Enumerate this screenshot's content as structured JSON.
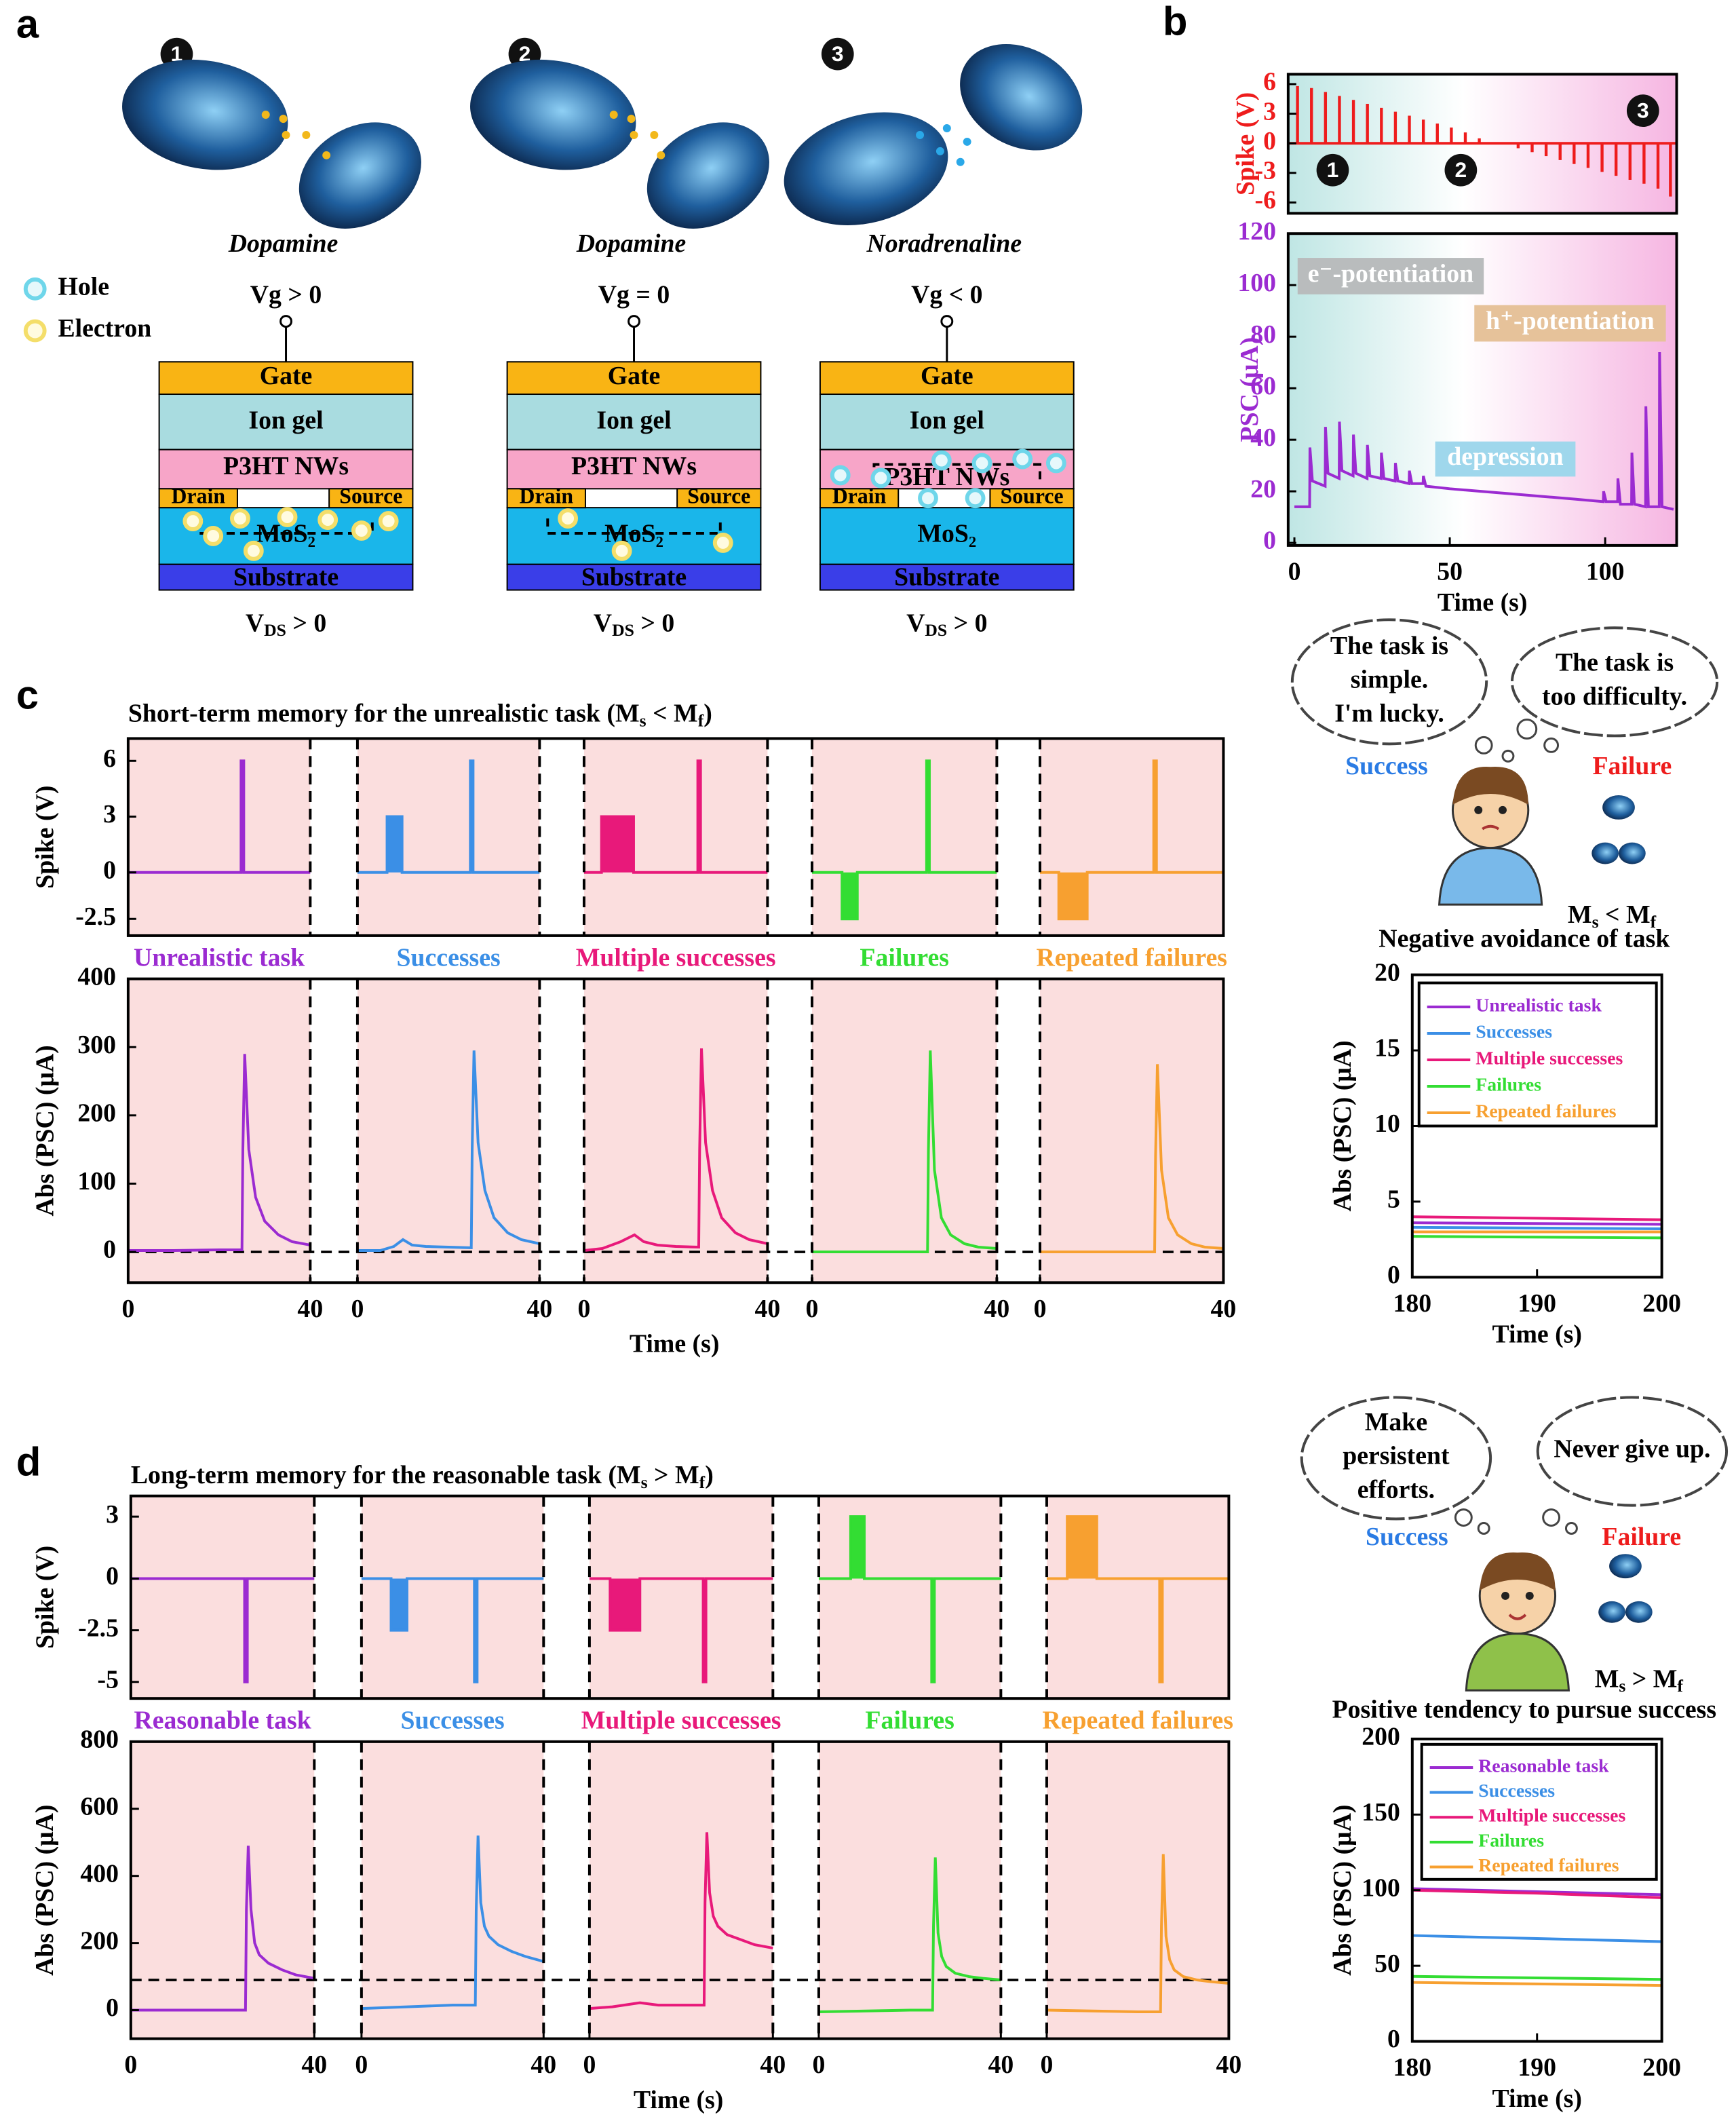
{
  "panel_labels": [
    "a",
    "b",
    "c",
    "d"
  ],
  "panel_a": {
    "columns": [
      {
        "number": "1",
        "transmitter": "Dopamine",
        "gate_voltage": "Vg > 0"
      },
      {
        "number": "2",
        "transmitter": "Dopamine",
        "gate_voltage": "Vg = 0"
      },
      {
        "number": "3",
        "transmitter": "Noradrenaline",
        "gate_voltage": "Vg < 0"
      }
    ],
    "legend": [
      "Hole",
      "Electron"
    ],
    "layers": {
      "gate": "Gate",
      "ion_gel": "Ion gel",
      "channel": "P3HT NWs",
      "drain": "Drain",
      "source": "Source",
      "mos2": "MoS₂",
      "substrate": "Substrate"
    },
    "vds": [
      "V",
      "DS",
      " > 0"
    ]
  },
  "panel_c": {
    "title": [
      "Short-term memory for the unrealistic task (M",
      "s",
      " < M",
      "f",
      ")"
    ],
    "thoughts": [
      [
        "The task is",
        "simple.",
        "I'm lucky."
      ],
      [
        "The  task  is",
        "too difficulty."
      ]
    ],
    "success": "Success",
    "failure": "Failure",
    "relation": [
      "M",
      "s",
      " < M",
      "f"
    ],
    "caption": "Negative avoidance of task"
  },
  "panel_d": {
    "title": [
      "Long-term memory for the reasonable task (M",
      "s",
      " > M",
      "f",
      ")"
    ],
    "thoughts": [
      [
        "Make",
        "persistent",
        "efforts."
      ],
      [
        "Never give up."
      ]
    ],
    "success": "Success",
    "failure": "Failure",
    "relation": [
      "M",
      "s",
      " > M",
      "f"
    ],
    "caption": "Positive tendency to pursue success"
  },
  "chart_data": [
    {
      "type": "stem",
      "ylabel": "Spike (V)",
      "color": "#ee1c1c",
      "x": [
        1,
        5.5,
        10,
        14.5,
        19,
        23.5,
        28,
        32.5,
        37,
        41.5,
        46,
        50.5,
        55,
        59.5,
        72,
        76.5,
        81,
        85.5,
        90,
        94.5,
        99,
        103.5,
        108,
        112.5,
        117,
        121
      ],
      "values": [
        5.8,
        5.6,
        5.2,
        4.8,
        4.4,
        4,
        3.6,
        3.2,
        2.8,
        2.4,
        2,
        1.6,
        1.1,
        0.5,
        -0.5,
        -0.9,
        -1.3,
        -1.7,
        -2.1,
        -2.5,
        -2.9,
        -3.3,
        -3.7,
        -4.1,
        -4.6,
        -5.4
      ],
      "xlim": [
        -2,
        123
      ],
      "ylim": [
        -7.1,
        7
      ],
      "yticks": [
        6,
        3,
        0,
        -3,
        -6
      ],
      "annotations": [
        "1",
        "2",
        "3"
      ]
    },
    {
      "type": "line",
      "xlabel": "Time (s)",
      "ylabel": "PSC (μA)",
      "color": "#9b2bd1",
      "x": [
        0,
        4.9,
        5,
        5.8,
        9.9,
        10,
        10.8,
        14.4,
        14.5,
        15.3,
        18.9,
        19,
        19.8,
        23.4,
        23.5,
        24.3,
        27.9,
        28,
        28.8,
        32.4,
        32.5,
        33.3,
        36.9,
        37,
        37.8,
        41.4,
        41.5,
        42.3,
        50,
        60,
        70,
        80,
        90,
        99.4,
        99.5,
        100.3,
        104,
        104.1,
        104.9,
        108.5,
        108.6,
        109.4,
        113,
        113.1,
        113.9,
        117.4,
        117.5,
        118.3,
        122
      ],
      "values": [
        14,
        14,
        37,
        24,
        22,
        45,
        27,
        25,
        47,
        28,
        26,
        42,
        27,
        25,
        38,
        26,
        25,
        35,
        25,
        24,
        31,
        24,
        23,
        28,
        23,
        23,
        26,
        22,
        21,
        20,
        19,
        18,
        17,
        16,
        20,
        16,
        16,
        25,
        15,
        15,
        35,
        15,
        14,
        53,
        14,
        14,
        74,
        14,
        13
      ],
      "xlim": [
        -2,
        123
      ],
      "ylim": [
        -1,
        120
      ],
      "xticks": [
        0,
        50,
        100
      ],
      "yticks": [
        0,
        20,
        40,
        60,
        80,
        100,
        120
      ],
      "annotations": [
        "e⁻-potentiation",
        "h⁺-potentiation",
        "depression"
      ]
    },
    {
      "type": "segments",
      "ylabel": "Spike (V)",
      "xlim": [
        0,
        40
      ],
      "ylim": [
        -3.4,
        7.2
      ],
      "yticks": [
        6,
        3,
        0,
        -2.5
      ],
      "series": [
        {
          "color": "#9b2bd1",
          "x": [
            0,
            24.8,
            24.8,
            25.4,
            25.4,
            40
          ],
          "values": [
            0,
            0,
            6,
            6,
            0,
            0
          ]
        },
        {
          "color": "#3b8fe6",
          "x": [
            0,
            6.5,
            6.5,
            9.8,
            9.8,
            24.8,
            24.8,
            25.4,
            25.4,
            40
          ],
          "values": [
            0,
            0,
            3,
            3,
            0,
            0,
            6,
            6,
            0,
            0
          ]
        },
        {
          "color": "#e8197a",
          "x": [
            0,
            3.8,
            3.8,
            10.8,
            10.8,
            24.8,
            24.8,
            25.4,
            25.4,
            40
          ],
          "values": [
            0,
            0,
            3,
            3,
            0,
            0,
            6,
            6,
            0,
            0
          ]
        },
        {
          "color": "#33dd33",
          "x": [
            0,
            6.5,
            6.5,
            9.8,
            9.8,
            24.8,
            24.8,
            25.4,
            25.4,
            40
          ],
          "values": [
            0,
            0,
            -2.5,
            -2.5,
            0,
            0,
            6,
            6,
            0,
            0
          ]
        },
        {
          "color": "#f7a030",
          "x": [
            0,
            4.1,
            4.1,
            10.3,
            10.3,
            24.8,
            24.8,
            25.4,
            25.4,
            40
          ],
          "values": [
            0,
            0,
            -2.5,
            -2.5,
            0,
            0,
            6,
            6,
            0,
            0
          ]
        }
      ]
    },
    {
      "type": "segments",
      "xlabel": "Time (s)",
      "ylabel": "Abs (PSC) (μA)",
      "xlim": [
        0,
        40
      ],
      "xticks": [
        0,
        40
      ],
      "ylim": [
        -45,
        400
      ],
      "yticks": [
        0,
        100,
        200,
        300,
        400
      ],
      "hline": 0,
      "series": [
        {
          "name": "Unrealistic task",
          "color": "#9b2bd1",
          "x": [
            0,
            10,
            20,
            25,
            25.2,
            25.6,
            26.5,
            28,
            30,
            33,
            36,
            40
          ],
          "values": [
            2,
            2,
            3,
            3,
            150,
            290,
            150,
            80,
            45,
            25,
            15,
            10
          ]
        },
        {
          "name": "Successes",
          "color": "#3b8fe6",
          "x": [
            0,
            5,
            8,
            10,
            12,
            15,
            20,
            25,
            25.2,
            25.6,
            26.5,
            28,
            30,
            33,
            36,
            40
          ],
          "values": [
            2,
            2,
            8,
            18,
            10,
            8,
            7,
            6,
            150,
            295,
            160,
            90,
            50,
            28,
            18,
            12
          ]
        },
        {
          "name": "Multiple successes",
          "color": "#e8197a",
          "x": [
            0,
            4,
            8,
            11,
            13,
            16,
            20,
            25,
            25.2,
            25.6,
            26.5,
            28,
            30,
            33,
            36,
            40
          ],
          "values": [
            2,
            5,
            15,
            25,
            15,
            10,
            8,
            7,
            150,
            298,
            160,
            90,
            50,
            28,
            18,
            12
          ]
        },
        {
          "name": "Failures",
          "color": "#33dd33",
          "x": [
            0,
            20,
            25,
            25.2,
            25.6,
            26.5,
            28,
            30,
            33,
            36,
            40
          ],
          "values": [
            0,
            0,
            0,
            150,
            295,
            120,
            50,
            25,
            12,
            7,
            5
          ]
        },
        {
          "name": "Repeated failures",
          "color": "#f7a030",
          "x": [
            0,
            20,
            25,
            25.2,
            25.6,
            26.5,
            28,
            30,
            33,
            36,
            40
          ],
          "values": [
            0,
            0,
            0,
            140,
            275,
            120,
            50,
            25,
            12,
            7,
            5
          ]
        }
      ]
    },
    {
      "type": "line",
      "xlabel": "Time (s)",
      "ylabel": "Abs (PSC) (μA)",
      "xlim": [
        180,
        200
      ],
      "xticks": [
        180,
        190,
        200
      ],
      "ylim": [
        0,
        20
      ],
      "yticks": [
        0,
        5,
        10,
        15,
        20
      ],
      "legend": "upper left",
      "x": [
        180,
        190,
        200
      ],
      "series": [
        {
          "name": "Unrealistic task",
          "color": "#9b2bd1",
          "values": [
            3.6,
            3.55,
            3.5
          ]
        },
        {
          "name": "Successes",
          "color": "#3b8fe6",
          "values": [
            3.3,
            3.25,
            3.2
          ]
        },
        {
          "name": "Multiple successes",
          "color": "#e8197a",
          "values": [
            4.0,
            3.9,
            3.8
          ]
        },
        {
          "name": "Failures",
          "color": "#33dd33",
          "values": [
            2.7,
            2.65,
            2.6
          ]
        },
        {
          "name": "Repeated failures",
          "color": "#f7a030",
          "values": [
            3.0,
            3.0,
            3.0
          ]
        }
      ]
    },
    {
      "type": "segments",
      "ylabel": "Spike (V)",
      "xlim": [
        0,
        40
      ],
      "ylim": [
        -5.8,
        4
      ],
      "yticks": [
        3,
        0,
        -2.5,
        -5
      ],
      "series": [
        {
          "color": "#9b2bd1",
          "x": [
            0,
            24.8,
            24.8,
            25.4,
            25.4,
            40
          ],
          "values": [
            0,
            0,
            -5,
            -5,
            0,
            0
          ]
        },
        {
          "color": "#3b8fe6",
          "x": [
            0,
            6.5,
            6.5,
            10,
            10,
            24.8,
            24.8,
            25.4,
            25.4,
            40
          ],
          "values": [
            0,
            0,
            -2.5,
            -2.5,
            0,
            0,
            -5,
            -5,
            0,
            0
          ]
        },
        {
          "color": "#e8197a",
          "x": [
            0,
            4.5,
            4.5,
            11,
            11,
            24.8,
            24.8,
            25.4,
            25.4,
            40
          ],
          "values": [
            0,
            0,
            -2.5,
            -2.5,
            0,
            0,
            -5,
            -5,
            0,
            0
          ]
        },
        {
          "color": "#33dd33",
          "x": [
            0,
            7,
            7,
            10,
            10,
            24.8,
            24.8,
            25.4,
            25.4,
            40
          ],
          "values": [
            0,
            0,
            3,
            3,
            0,
            0,
            -5,
            -5,
            0,
            0
          ]
        },
        {
          "color": "#f7a030",
          "x": [
            0,
            4.5,
            4.5,
            11,
            11,
            24.8,
            24.8,
            25.4,
            25.4,
            40
          ],
          "values": [
            0,
            0,
            3,
            3,
            0,
            0,
            -5,
            -5,
            0,
            0
          ]
        }
      ]
    },
    {
      "type": "segments",
      "xlabel": "Time (s)",
      "ylabel": "Abs (PSC) (μA)",
      "xlim": [
        0,
        40
      ],
      "xticks": [
        0,
        40
      ],
      "ylim": [
        -85,
        800
      ],
      "yticks": [
        0,
        200,
        400,
        600,
        800
      ],
      "hline": 90,
      "series": [
        {
          "name": "Reasonable task",
          "color": "#9b2bd1",
          "x": [
            0,
            20,
            25,
            25.2,
            25.6,
            26.2,
            27,
            28,
            30,
            33,
            36,
            40
          ],
          "values": [
            0,
            0,
            0,
            300,
            490,
            300,
            200,
            165,
            140,
            120,
            105,
            95
          ]
        },
        {
          "name": "Successes",
          "color": "#3b8fe6",
          "x": [
            0,
            10,
            20,
            25,
            25.2,
            25.6,
            26.2,
            27,
            28,
            30,
            33,
            36,
            40
          ],
          "values": [
            5,
            10,
            15,
            15,
            300,
            520,
            320,
            250,
            220,
            195,
            175,
            160,
            145
          ]
        },
        {
          "name": "Multiple successes",
          "color": "#e8197a",
          "x": [
            0,
            5,
            11,
            15,
            20,
            25,
            25.2,
            25.6,
            26.2,
            27,
            28,
            30,
            33,
            36,
            40
          ],
          "values": [
            5,
            10,
            22,
            15,
            15,
            15,
            320,
            530,
            350,
            280,
            250,
            225,
            210,
            195,
            185
          ]
        },
        {
          "name": "Failures",
          "color": "#33dd33",
          "x": [
            0,
            20,
            25,
            25.2,
            25.6,
            26.2,
            27,
            28,
            30,
            33,
            36,
            40
          ],
          "values": [
            -5,
            0,
            0,
            250,
            455,
            230,
            160,
            130,
            110,
            100,
            95,
            90
          ]
        },
        {
          "name": "Repeated failures",
          "color": "#f7a030",
          "x": [
            0,
            20,
            25,
            25.2,
            25.6,
            26.2,
            27,
            28,
            30,
            33,
            36,
            40
          ],
          "values": [
            0,
            -5,
            -5,
            250,
            465,
            220,
            150,
            120,
            100,
            90,
            85,
            80
          ]
        }
      ]
    },
    {
      "type": "line",
      "xlabel": "Time (s)",
      "ylabel": "Abs (PSC) (μA)",
      "xlim": [
        180,
        200
      ],
      "xticks": [
        180,
        190,
        200
      ],
      "ylim": [
        0,
        200
      ],
      "yticks": [
        0,
        50,
        100,
        150,
        200
      ],
      "legend": "upper left",
      "x": [
        180,
        190,
        200
      ],
      "series": [
        {
          "name": "Reasonable task",
          "color": "#9b2bd1",
          "values": [
            101,
            99,
            97
          ]
        },
        {
          "name": "Successes",
          "color": "#3b8fe6",
          "values": [
            70,
            68,
            66
          ]
        },
        {
          "name": "Multiple successes",
          "color": "#e8197a",
          "values": [
            100,
            98,
            95
          ]
        },
        {
          "name": "Failures",
          "color": "#33dd33",
          "values": [
            43,
            42,
            41
          ]
        },
        {
          "name": "Repeated failures",
          "color": "#f7a030",
          "values": [
            39,
            38,
            37
          ]
        }
      ]
    }
  ]
}
